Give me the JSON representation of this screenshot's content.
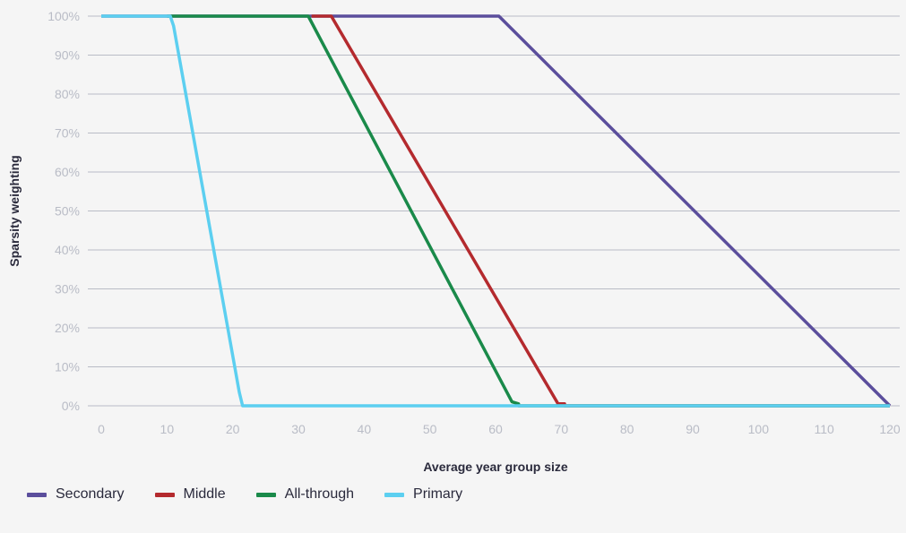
{
  "chart_data": {
    "type": "line",
    "xlabel": "Average year group size",
    "ylabel": "Sparsity weighting",
    "xlim": [
      0,
      120
    ],
    "ylim": [
      0,
      100
    ],
    "x_ticks": [
      "0",
      "10",
      "20",
      "30",
      "40",
      "50",
      "60",
      "70",
      "80",
      "90",
      "100",
      "110",
      "120"
    ],
    "y_ticks": [
      "0%",
      "10%",
      "20%",
      "30%",
      "40%",
      "50%",
      "60%",
      "70%",
      "80%",
      "90%",
      "100%"
    ],
    "grid": "horizontal",
    "legend_position": "bottom-left",
    "series": [
      {
        "name": "Secondary",
        "color": "#5b4e9c",
        "points": [
          [
            0,
            100
          ],
          [
            60.5,
            100
          ],
          [
            120,
            0
          ]
        ]
      },
      {
        "name": "Middle",
        "color": "#b42a2e",
        "points": [
          [
            32,
            100
          ],
          [
            35,
            100
          ],
          [
            69.5,
            0.5
          ],
          [
            70.5,
            0.5
          ],
          [
            70.5,
            0
          ],
          [
            120,
            0
          ]
        ]
      },
      {
        "name": "All-through",
        "color": "#1a8a4a",
        "points": [
          [
            10,
            100
          ],
          [
            31.5,
            100
          ],
          [
            62.5,
            1
          ],
          [
            63.5,
            0.5
          ],
          [
            63.5,
            0
          ],
          [
            120,
            0
          ]
        ]
      },
      {
        "name": "Primary",
        "color": "#5ccff0",
        "points": [
          [
            0,
            100
          ],
          [
            10.5,
            100
          ],
          [
            11,
            97.5
          ],
          [
            21,
            3.5
          ],
          [
            21.5,
            0
          ],
          [
            120,
            0
          ]
        ]
      }
    ]
  }
}
